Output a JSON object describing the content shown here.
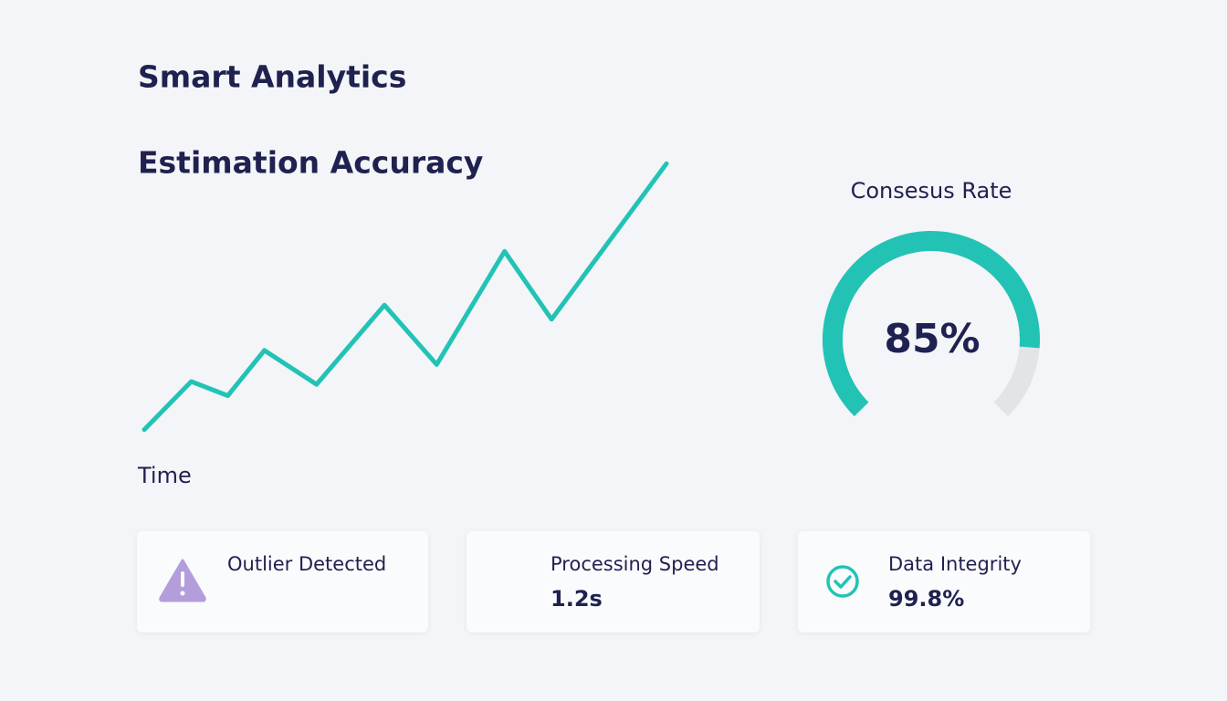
{
  "header": {
    "title": "Smart Analytics"
  },
  "chart_data": [
    {
      "type": "line",
      "title": "Estimation Accuracy",
      "x_label": "Time",
      "color": "#22c3b5",
      "x": [
        0,
        9,
        16,
        23,
        33,
        46,
        56,
        69,
        78,
        100
      ],
      "values": [
        3,
        20,
        15,
        31,
        19,
        47,
        26,
        66,
        42,
        97
      ],
      "xlim": [
        0,
        100
      ],
      "ylim": [
        0,
        100
      ]
    },
    {
      "type": "gauge",
      "title": "Consesus Rate",
      "value": 85,
      "value_label": "85%",
      "range": [
        0,
        100
      ],
      "color": "#22c3b5",
      "track_color": "#e2e4e8"
    }
  ],
  "cards": [
    {
      "label": "Outlier Detected"
    },
    {
      "label": "Processing Speed",
      "value": "1.2s"
    },
    {
      "label": "Data Integrity",
      "value": "99.8%"
    }
  ]
}
